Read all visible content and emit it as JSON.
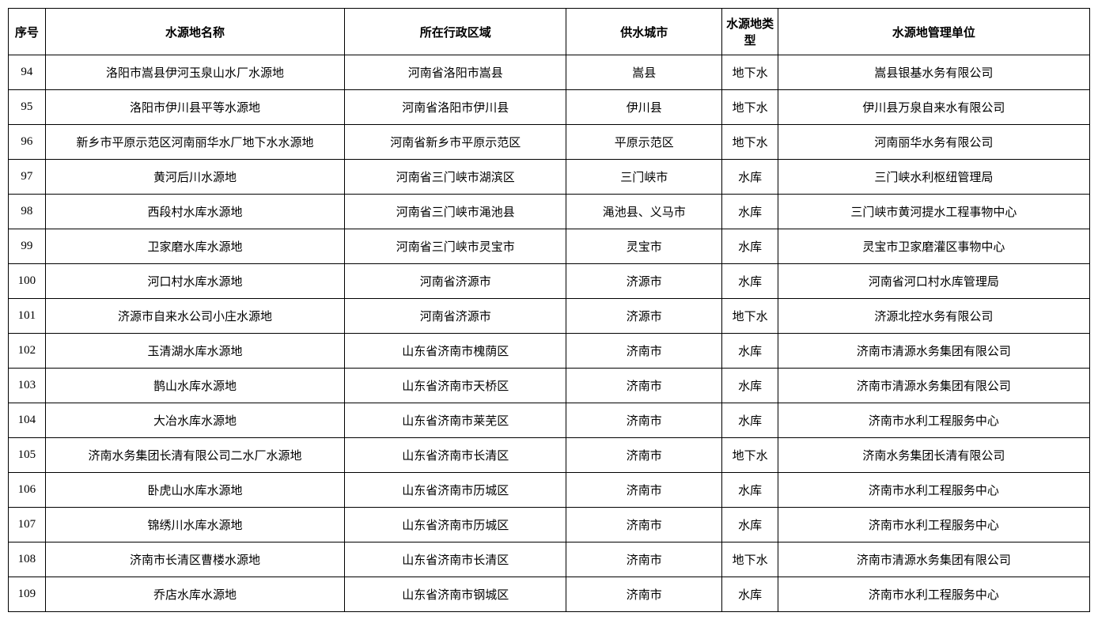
{
  "table": {
    "columns": [
      {
        "key": "seq",
        "label": "序号"
      },
      {
        "key": "name",
        "label": "水源地名称"
      },
      {
        "key": "region",
        "label": "所在行政区域"
      },
      {
        "key": "city",
        "label": "供水城市"
      },
      {
        "key": "type",
        "label": "水源地类型"
      },
      {
        "key": "unit",
        "label": "水源地管理单位"
      }
    ],
    "rows": [
      {
        "seq": "94",
        "name": "洛阳市嵩县伊河玉泉山水厂水源地",
        "region": "河南省洛阳市嵩县",
        "city": "嵩县",
        "type": "地下水",
        "unit": "嵩县银基水务有限公司"
      },
      {
        "seq": "95",
        "name": "洛阳市伊川县平等水源地",
        "region": "河南省洛阳市伊川县",
        "city": "伊川县",
        "type": "地下水",
        "unit": "伊川县万泉自来水有限公司"
      },
      {
        "seq": "96",
        "name": "新乡市平原示范区河南丽华水厂地下水水源地",
        "region": "河南省新乡市平原示范区",
        "city": "平原示范区",
        "type": "地下水",
        "unit": "河南丽华水务有限公司"
      },
      {
        "seq": "97",
        "name": "黄河后川水源地",
        "region": "河南省三门峡市湖滨区",
        "city": "三门峡市",
        "type": "水库",
        "unit": "三门峡水利枢纽管理局"
      },
      {
        "seq": "98",
        "name": "西段村水库水源地",
        "region": "河南省三门峡市渑池县",
        "city": "渑池县、义马市",
        "type": "水库",
        "unit": "三门峡市黄河提水工程事物中心"
      },
      {
        "seq": "99",
        "name": "卫家磨水库水源地",
        "region": "河南省三门峡市灵宝市",
        "city": "灵宝市",
        "type": "水库",
        "unit": "灵宝市卫家磨灌区事物中心"
      },
      {
        "seq": "100",
        "name": "河口村水库水源地",
        "region": "河南省济源市",
        "city": "济源市",
        "type": "水库",
        "unit": "河南省河口村水库管理局"
      },
      {
        "seq": "101",
        "name": "济源市自来水公司小庄水源地",
        "region": "河南省济源市",
        "city": "济源市",
        "type": "地下水",
        "unit": "济源北控水务有限公司"
      },
      {
        "seq": "102",
        "name": "玉清湖水库水源地",
        "region": "山东省济南市槐荫区",
        "city": "济南市",
        "type": "水库",
        "unit": "济南市清源水务集团有限公司"
      },
      {
        "seq": "103",
        "name": "鹊山水库水源地",
        "region": "山东省济南市天桥区",
        "city": "济南市",
        "type": "水库",
        "unit": "济南市清源水务集团有限公司"
      },
      {
        "seq": "104",
        "name": "大冶水库水源地",
        "region": "山东省济南市莱芜区",
        "city": "济南市",
        "type": "水库",
        "unit": "济南市水利工程服务中心"
      },
      {
        "seq": "105",
        "name": "济南水务集团长清有限公司二水厂水源地",
        "region": "山东省济南市长清区",
        "city": "济南市",
        "type": "地下水",
        "unit": "济南水务集团长清有限公司"
      },
      {
        "seq": "106",
        "name": "卧虎山水库水源地",
        "region": "山东省济南市历城区",
        "city": "济南市",
        "type": "水库",
        "unit": "济南市水利工程服务中心"
      },
      {
        "seq": "107",
        "name": "锦绣川水库水源地",
        "region": "山东省济南市历城区",
        "city": "济南市",
        "type": "水库",
        "unit": "济南市水利工程服务中心"
      },
      {
        "seq": "108",
        "name": "济南市长清区曹楼水源地",
        "region": "山东省济南市长清区",
        "city": "济南市",
        "type": "地下水",
        "unit": "济南市清源水务集团有限公司"
      },
      {
        "seq": "109",
        "name": "乔店水库水源地",
        "region": "山东省济南市钢城区",
        "city": "济南市",
        "type": "水库",
        "unit": "济南市水利工程服务中心"
      }
    ]
  }
}
